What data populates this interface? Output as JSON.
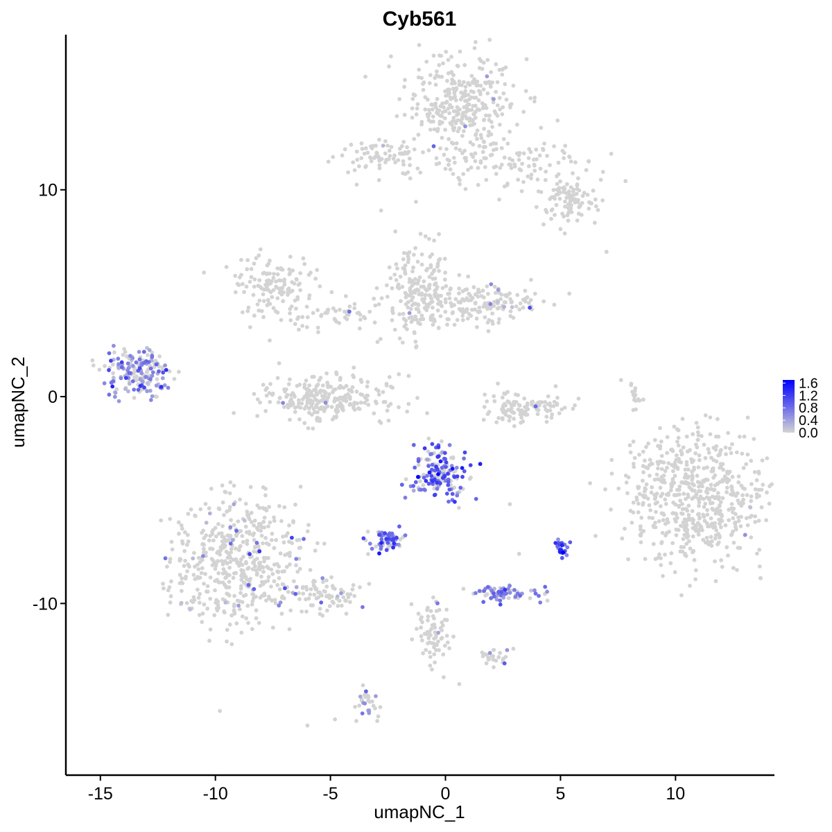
{
  "chart_data": {
    "type": "scatter",
    "title": "Cyb561",
    "xlabel": "umapNC_1",
    "ylabel": "umapNC_2",
    "xlim": [
      -16.5,
      14.3
    ],
    "ylim": [
      -18.3,
      17.5
    ],
    "x_ticks": [
      -15,
      -10,
      -5,
      0,
      5,
      10
    ],
    "x_tick_labels": [
      "-15",
      "-10",
      "-5",
      "0",
      "5",
      "10"
    ],
    "y_ticks": [
      -10,
      0,
      10
    ],
    "y_tick_labels": [
      "-10",
      "0",
      "10"
    ],
    "grid": false,
    "legend_position": "right",
    "colorbar": {
      "min": 0.0,
      "max": 1.7,
      "labels": [
        "1.6",
        "1.2",
        "0.8",
        "0.4",
        "0.0"
      ],
      "values": [
        1.6,
        1.2,
        0.8,
        0.4,
        0.0
      ],
      "low_color": "#d3d3d3",
      "high_color": "#0000ff"
    },
    "clusters": [
      {
        "cx": 0.7,
        "cy": 14.2,
        "sx": 1.2,
        "sy": 1.1,
        "n": 320,
        "expr_frac": 0.005,
        "expr_mean": 0.5
      },
      {
        "cx": 2.8,
        "cy": 11.2,
        "sx": 1.8,
        "sy": 0.7,
        "n": 120,
        "expr_frac": 0.0,
        "expr_mean": 0.0
      },
      {
        "cx": 5.3,
        "cy": 9.6,
        "sx": 0.6,
        "sy": 0.6,
        "n": 90,
        "expr_frac": 0.0,
        "expr_mean": 0.0
      },
      {
        "cx": -2.5,
        "cy": 11.6,
        "sx": 1.2,
        "sy": 0.4,
        "n": 80,
        "expr_frac": 0.02,
        "expr_mean": 0.5
      },
      {
        "cx": -7.5,
        "cy": 5.3,
        "sx": 0.9,
        "sy": 0.8,
        "n": 130,
        "expr_frac": 0.0,
        "expr_mean": 0.0
      },
      {
        "cx": -5.0,
        "cy": 4.0,
        "sx": 0.9,
        "sy": 0.4,
        "n": 50,
        "expr_frac": 0.02,
        "expr_mean": 0.5
      },
      {
        "cx": -1.2,
        "cy": 5.0,
        "sx": 0.8,
        "sy": 1.1,
        "n": 200,
        "expr_frac": 0.0,
        "expr_mean": 0.0
      },
      {
        "cx": 1.6,
        "cy": 4.5,
        "sx": 1.3,
        "sy": 0.5,
        "n": 150,
        "expr_frac": 0.01,
        "expr_mean": 0.5
      },
      {
        "cx": -5.3,
        "cy": -0.1,
        "sx": 1.3,
        "sy": 0.6,
        "n": 260,
        "expr_frac": 0.01,
        "expr_mean": 0.4
      },
      {
        "cx": 3.4,
        "cy": -0.5,
        "sx": 1.0,
        "sy": 0.4,
        "n": 110,
        "expr_frac": 0.01,
        "expr_mean": 0.5
      },
      {
        "cx": 10.8,
        "cy": -4.9,
        "sx": 1.6,
        "sy": 1.6,
        "n": 600,
        "expr_frac": 0.003,
        "expr_mean": 0.5
      },
      {
        "cx": -13.4,
        "cy": 1.2,
        "sx": 0.7,
        "sy": 0.6,
        "n": 180,
        "expr_frac": 0.5,
        "expr_mean": 0.6
      },
      {
        "cx": -0.3,
        "cy": -3.7,
        "sx": 0.6,
        "sy": 0.6,
        "n": 160,
        "expr_frac": 0.6,
        "expr_mean": 0.9
      },
      {
        "cx": -2.6,
        "cy": -6.9,
        "sx": 0.4,
        "sy": 0.25,
        "n": 60,
        "expr_frac": 0.7,
        "expr_mean": 0.8
      },
      {
        "cx": 5.0,
        "cy": -7.3,
        "sx": 0.15,
        "sy": 0.2,
        "n": 25,
        "expr_frac": 0.9,
        "expr_mean": 1.0
      },
      {
        "cx": 2.5,
        "cy": -9.5,
        "sx": 0.7,
        "sy": 0.2,
        "n": 70,
        "expr_frac": 0.6,
        "expr_mean": 0.7
      },
      {
        "cx": -9.0,
        "cy": -8.0,
        "sx": 1.4,
        "sy": 1.5,
        "n": 500,
        "expr_frac": 0.07,
        "expr_mean": 0.6
      },
      {
        "cx": -5.5,
        "cy": -9.7,
        "sx": 0.9,
        "sy": 0.4,
        "n": 80,
        "expr_frac": 0.12,
        "expr_mean": 0.6
      },
      {
        "cx": -0.5,
        "cy": -11.5,
        "sx": 0.4,
        "sy": 0.8,
        "n": 70,
        "expr_frac": 0.03,
        "expr_mean": 0.5
      },
      {
        "cx": 2.2,
        "cy": -12.6,
        "sx": 0.3,
        "sy": 0.2,
        "n": 25,
        "expr_frac": 0.2,
        "expr_mean": 0.6
      },
      {
        "cx": -3.4,
        "cy": -14.8,
        "sx": 0.2,
        "sy": 0.5,
        "n": 30,
        "expr_frac": 0.25,
        "expr_mean": 0.6
      },
      {
        "cx": 8.3,
        "cy": 0.2,
        "sx": 0.12,
        "sy": 0.5,
        "n": 15,
        "expr_frac": 0.0,
        "expr_mean": 0.0
      }
    ],
    "stray_points": [
      [
        -10.5,
        6.0
      ],
      [
        -6.0,
        -15.9
      ],
      [
        -4.8,
        -15.6
      ],
      [
        0.6,
        -13.9
      ],
      [
        7.0,
        7.0
      ],
      [
        5.0,
        8.1
      ],
      [
        -2.8,
        9.0
      ],
      [
        -1.6,
        1.0
      ],
      [
        -0.8,
        -0.8
      ],
      [
        2.8,
        -5.2
      ],
      [
        3.2,
        -7.6
      ]
    ]
  }
}
